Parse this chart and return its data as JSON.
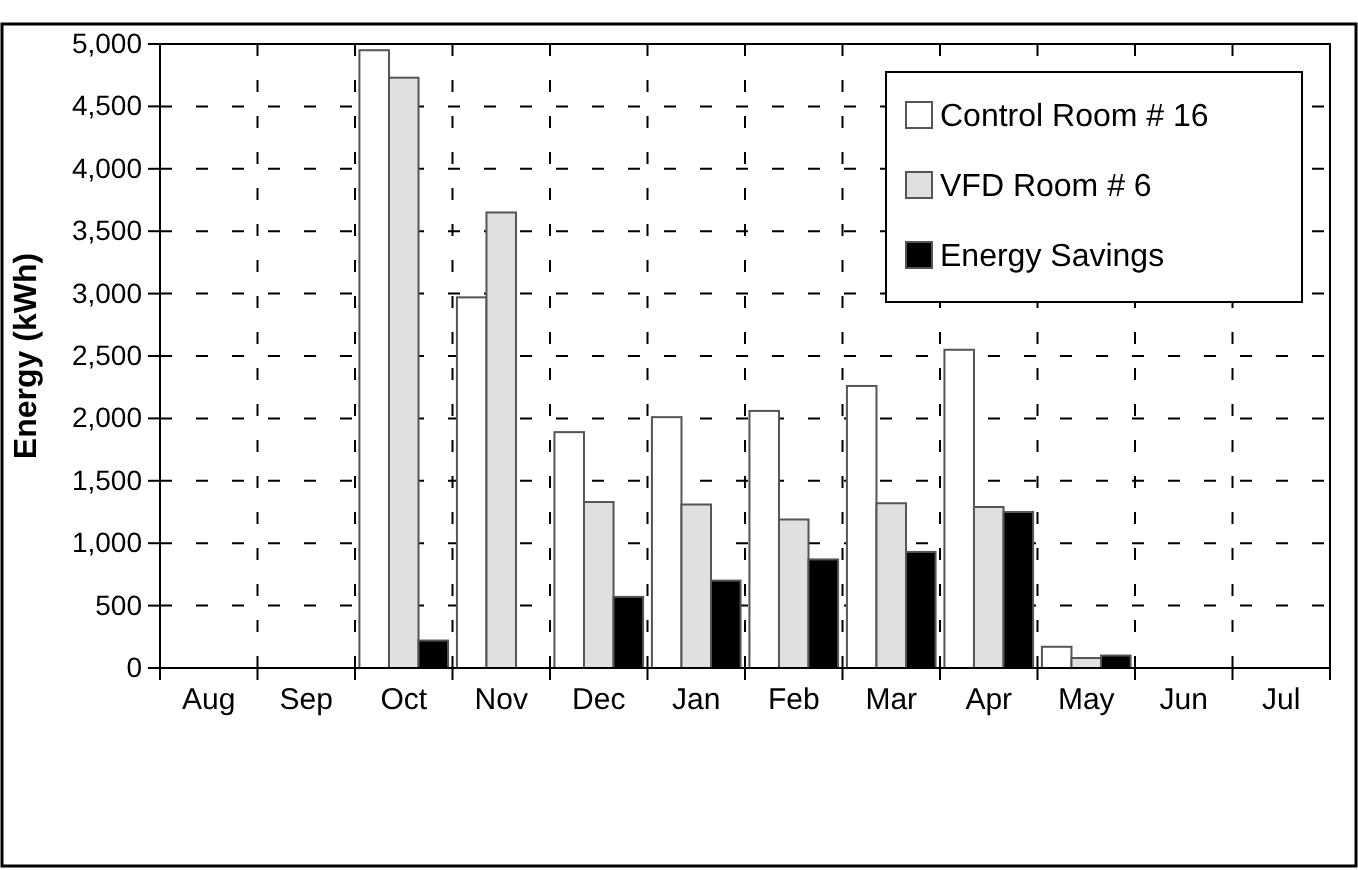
{
  "chart_data": {
    "type": "bar",
    "ylabel": "Energy (kWh)",
    "categories": [
      "Aug",
      "Sep",
      "Oct",
      "Nov",
      "Dec",
      "Jan",
      "Feb",
      "Mar",
      "Apr",
      "May",
      "Jun",
      "Jul"
    ],
    "series": [
      {
        "name": "Control Room # 16",
        "color": "#ffffff",
        "values": [
          null,
          null,
          4950,
          2970,
          1890,
          2010,
          2060,
          2260,
          2550,
          170,
          null,
          null
        ]
      },
      {
        "name": "VFD Room # 6",
        "color": "#e0e0e0",
        "values": [
          null,
          null,
          4730,
          3650,
          1330,
          1310,
          1190,
          1320,
          1290,
          80,
          null,
          null
        ]
      },
      {
        "name": "Energy Savings",
        "color": "#000000",
        "values": [
          null,
          null,
          220,
          null,
          570,
          700,
          870,
          930,
          1250,
          100,
          null,
          null
        ]
      }
    ],
    "ylim": [
      0,
      5000
    ],
    "yticks": [
      {
        "value": 0,
        "label": "0"
      },
      {
        "value": 500,
        "label": "500"
      },
      {
        "value": 1000,
        "label": "1,000"
      },
      {
        "value": 1500,
        "label": "1,500"
      },
      {
        "value": 2000,
        "label": "2,000"
      },
      {
        "value": 2500,
        "label": "2,500"
      },
      {
        "value": 3000,
        "label": "3,000"
      },
      {
        "value": 3500,
        "label": "3,500"
      },
      {
        "value": 4000,
        "label": "4,000"
      },
      {
        "value": 4500,
        "label": "4,500"
      },
      {
        "value": 5000,
        "label": "5,000"
      }
    ],
    "grid": true,
    "legend": "top right"
  }
}
